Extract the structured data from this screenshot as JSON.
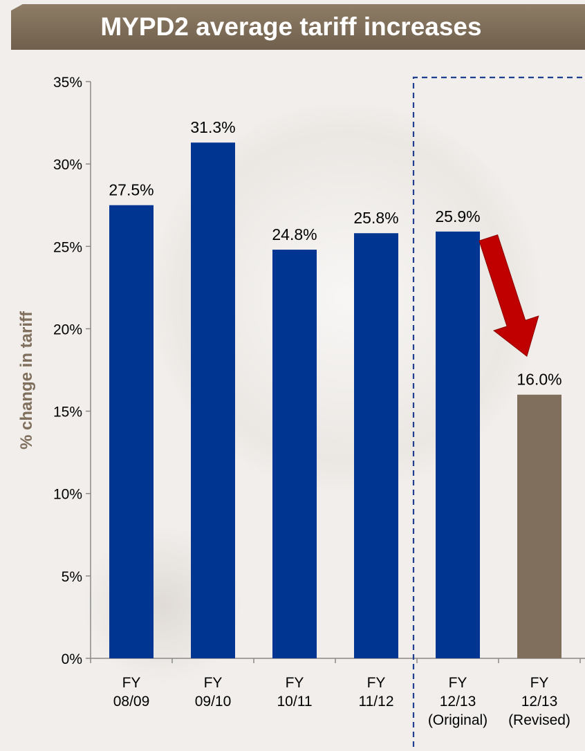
{
  "banner": {
    "title": "MYPD2 average tariff increases"
  },
  "colors": {
    "original": "#003591",
    "revised": "#7f6f5c",
    "arrow": "#c00000",
    "divider": "#1f3e8f",
    "ylabel": "#7f6f5c"
  },
  "chart_data": {
    "type": "bar",
    "title": "MYPD2 average tariff increases",
    "ylabel": "% change in tariff",
    "xlabel": "",
    "ylim": [
      0,
      35
    ],
    "yticks": [
      "0%",
      "5%",
      "10%",
      "15%",
      "20%",
      "25%",
      "30%",
      "35%"
    ],
    "grid": false,
    "categories": [
      [
        "FY",
        "08/09"
      ],
      [
        "FY",
        "09/10"
      ],
      [
        "FY",
        "10/11"
      ],
      [
        "FY",
        "11/12"
      ],
      [
        "FY",
        "12/13",
        "(Original)"
      ],
      [
        "FY",
        "12/13",
        "(Revised)"
      ]
    ],
    "values": [
      27.5,
      31.3,
      24.8,
      25.8,
      25.9,
      16.0
    ],
    "data_labels": [
      "27.5%",
      "31.3%",
      "24.8%",
      "25.8%",
      "25.9%",
      "16.0%"
    ],
    "annotations": {
      "dashed_box_around": [
        4,
        5
      ],
      "arrow_from": 4,
      "arrow_to": 5
    }
  }
}
